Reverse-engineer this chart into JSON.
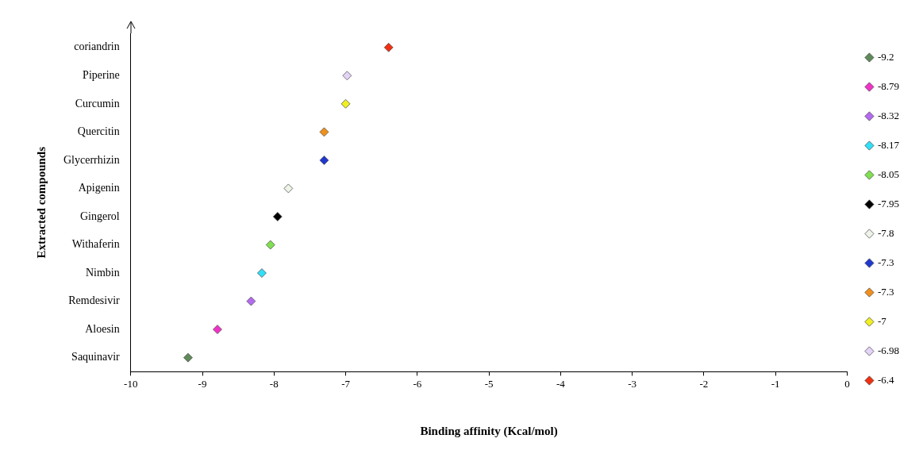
{
  "chart_data": {
    "type": "scatter",
    "orientation": "horizontal",
    "xlabel": "Binding affinity (Kcal/mol)",
    "ylabel": "Extracted compounds",
    "categories": [
      "coriandrin",
      "Piperine",
      "Curcumin",
      "Quercitin",
      "Glycerrhizin",
      "Apigenin",
      "Gingerol",
      "Withaferin",
      "Nimbin",
      "Remdesivir",
      "Aloesin",
      "Saquinavir"
    ],
    "xlim": [
      -10,
      0
    ],
    "xticks": [
      -10,
      -9,
      -8,
      -7,
      -6,
      -5,
      -4,
      -3,
      -2,
      -1,
      0
    ],
    "grid": false,
    "legend": "right",
    "marker": "diamond",
    "series": [
      {
        "name": "-9.2",
        "color": "#5f8a5a",
        "values": [
          null,
          null,
          null,
          null,
          null,
          null,
          null,
          null,
          null,
          null,
          null,
          -9.2
        ]
      },
      {
        "name": "-8.79",
        "color": "#f032c8",
        "values": [
          null,
          null,
          null,
          null,
          null,
          null,
          null,
          null,
          null,
          null,
          -8.79,
          null
        ]
      },
      {
        "name": "-8.32",
        "color": "#b46af0",
        "values": [
          null,
          null,
          null,
          null,
          null,
          null,
          null,
          null,
          null,
          -8.32,
          null,
          null
        ]
      },
      {
        "name": "-8.17",
        "color": "#30e0f8",
        "values": [
          null,
          null,
          null,
          null,
          null,
          null,
          null,
          null,
          -8.17,
          null,
          null,
          null
        ]
      },
      {
        "name": "-8.05",
        "color": "#80e050",
        "values": [
          null,
          null,
          null,
          null,
          null,
          null,
          null,
          -8.05,
          null,
          null,
          null,
          null
        ]
      },
      {
        "name": "-7.95",
        "color": "#000000",
        "values": [
          null,
          null,
          null,
          null,
          null,
          null,
          -7.95,
          null,
          null,
          null,
          null,
          null
        ]
      },
      {
        "name": "-7.8",
        "color": "#eef4e8",
        "values": [
          null,
          null,
          null,
          null,
          null,
          -7.8,
          null,
          null,
          null,
          null,
          null,
          null
        ]
      },
      {
        "name": "-7.3",
        "color": "#2038d0",
        "values": [
          null,
          null,
          null,
          null,
          -7.3,
          null,
          null,
          null,
          null,
          null,
          null,
          null
        ]
      },
      {
        "name": "-7.3",
        "color": "#f0901a",
        "values": [
          null,
          null,
          null,
          -7.3,
          null,
          null,
          null,
          null,
          null,
          null,
          null,
          null
        ]
      },
      {
        "name": "-7",
        "color": "#f0f020",
        "values": [
          null,
          null,
          -7,
          null,
          null,
          null,
          null,
          null,
          null,
          null,
          null,
          null
        ]
      },
      {
        "name": "-6.98",
        "color": "#e4d4f8",
        "values": [
          null,
          -6.98,
          null,
          null,
          null,
          null,
          null,
          null,
          null,
          null,
          null,
          null
        ]
      },
      {
        "name": "-6.4",
        "color": "#f03010",
        "values": [
          -6.4,
          null,
          null,
          null,
          null,
          null,
          null,
          null,
          null,
          null,
          null,
          null
        ]
      }
    ]
  }
}
